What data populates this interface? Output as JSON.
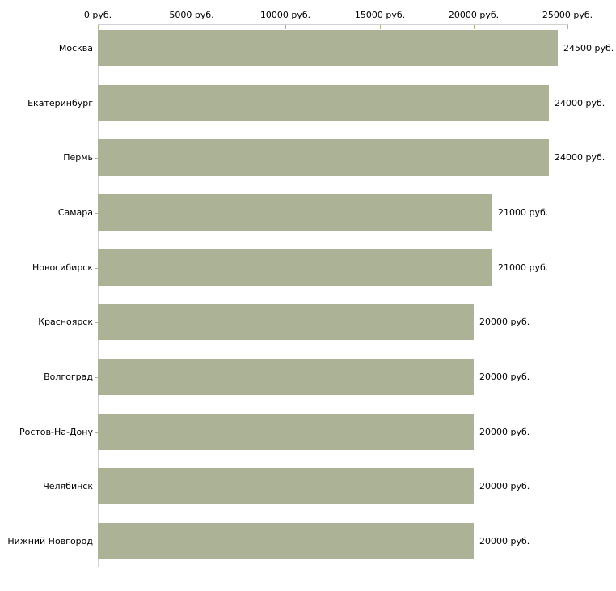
{
  "chart_data": {
    "type": "bar",
    "orientation": "horizontal",
    "title": "",
    "xlabel": "",
    "ylabel": "",
    "categories": [
      "Москва",
      "Екатеринбург",
      "Пермь",
      "Самара",
      "Новосибирск",
      "Красноярск",
      "Волгоград",
      "Ростов-На-Дону",
      "Челябинск",
      "Нижний Новгород"
    ],
    "values": [
      24500,
      24000,
      24000,
      21000,
      21000,
      20000,
      20000,
      20000,
      20000,
      20000
    ],
    "value_labels": [
      "24500 руб.",
      "24000 руб.",
      "24000 руб.",
      "21000 руб.",
      "21000 руб.",
      "20000 руб.",
      "20000 руб.",
      "20000 руб.",
      "20000 руб.",
      "20000 руб."
    ],
    "x_ticks": [
      0,
      5000,
      10000,
      15000,
      20000,
      25000
    ],
    "x_tick_labels": [
      "0 руб.",
      "5000 руб.",
      "10000 руб.",
      "15000 руб.",
      "20000 руб.",
      "25000 руб."
    ],
    "xlim": [
      0,
      25000
    ],
    "grid": false,
    "legend": false,
    "bar_color": "#acb296",
    "axis_color": "#d0d0d0",
    "tick_color": "#b5b28a",
    "text_color": "#000000"
  }
}
